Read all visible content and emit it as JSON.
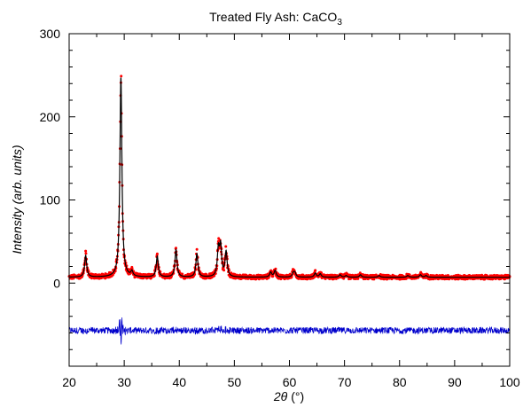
{
  "chart_data": {
    "type": "scatter",
    "title": "Treated Fly Ash: CaCO",
    "title_subscript": "3",
    "xlabel_symbol": "2θ",
    "xlabel_unit": "(°)",
    "ylabel_main": "Intensity",
    "ylabel_unit": "(arb. units)",
    "xlim": [
      20,
      100
    ],
    "ylim": [
      -100,
      300
    ],
    "x_ticks": [
      20,
      30,
      40,
      50,
      60,
      70,
      80,
      90,
      100
    ],
    "y_ticks": [
      0,
      100,
      200,
      300
    ],
    "x_tick_labels": [
      "20",
      "30",
      "40",
      "50",
      "60",
      "70",
      "80",
      "90",
      "100"
    ],
    "y_tick_labels": [
      "0",
      "100",
      "200",
      "300"
    ],
    "grid": false,
    "legend": "none",
    "series": [
      {
        "role": "observed",
        "style": "points",
        "color": "#ff0000"
      },
      {
        "role": "calculated",
        "style": "line",
        "color": "#000000"
      },
      {
        "role": "difference",
        "style": "line",
        "color": "#0000cc"
      }
    ],
    "baseline": 7,
    "difference_offset": -57,
    "peaks": [
      {
        "x": 23.0,
        "y": 26
      },
      {
        "x": 29.4,
        "y": 240
      },
      {
        "x": 31.4,
        "y": 6
      },
      {
        "x": 36.0,
        "y": 25
      },
      {
        "x": 39.4,
        "y": 33
      },
      {
        "x": 43.2,
        "y": 28
      },
      {
        "x": 47.1,
        "y": 32
      },
      {
        "x": 47.5,
        "y": 35
      },
      {
        "x": 48.5,
        "y": 30
      },
      {
        "x": 56.6,
        "y": 6
      },
      {
        "x": 57.4,
        "y": 8
      },
      {
        "x": 60.7,
        "y": 5
      },
      {
        "x": 61.0,
        "y": 5
      },
      {
        "x": 64.7,
        "y": 5
      },
      {
        "x": 65.6,
        "y": 4
      },
      {
        "x": 69.2,
        "y": 3
      },
      {
        "x": 70.3,
        "y": 2
      },
      {
        "x": 72.9,
        "y": 3
      },
      {
        "x": 76.3,
        "y": 2
      },
      {
        "x": 81.5,
        "y": 2
      },
      {
        "x": 83.8,
        "y": 3
      },
      {
        "x": 84.8,
        "y": 2
      }
    ]
  }
}
